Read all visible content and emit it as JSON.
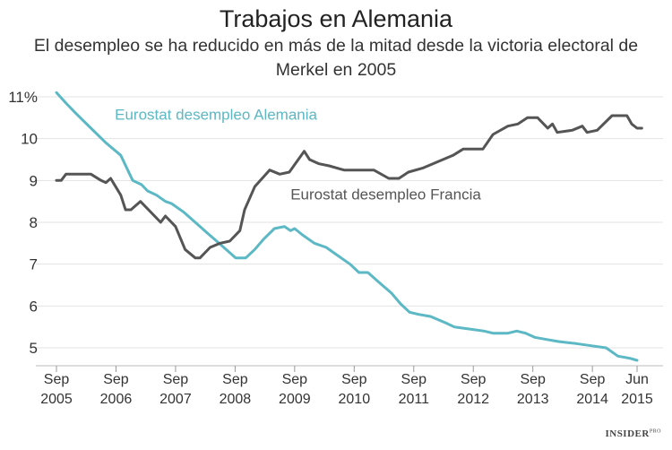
{
  "chart_data": {
    "type": "line",
    "title": "Trabajos en Alemania",
    "subtitle": "El desempleo se ha reducido en más de la mitad desde la victoria electoral de Merkel en 2005",
    "xlabel": "",
    "ylabel": "",
    "ylim": [
      4.6,
      11.2
    ],
    "xlim": [
      2005.67,
      2015.42
    ],
    "y_ticks": [
      {
        "value": 11,
        "label": "11%"
      },
      {
        "value": 10,
        "label": "10"
      },
      {
        "value": 9,
        "label": "9"
      },
      {
        "value": 8,
        "label": "8"
      },
      {
        "value": 7,
        "label": "7"
      },
      {
        "value": 6,
        "label": "6"
      },
      {
        "value": 5,
        "label": "5"
      }
    ],
    "x_ticks": [
      {
        "value": 2005.67,
        "line1": "Sep",
        "line2": "2005"
      },
      {
        "value": 2006.67,
        "line1": "Sep",
        "line2": "2006"
      },
      {
        "value": 2007.67,
        "line1": "Sep",
        "line2": "2007"
      },
      {
        "value": 2008.67,
        "line1": "Sep",
        "line2": "2008"
      },
      {
        "value": 2009.67,
        "line1": "Sep",
        "line2": "2009"
      },
      {
        "value": 2010.67,
        "line1": "Sep",
        "line2": "2010"
      },
      {
        "value": 2011.67,
        "line1": "Sep",
        "line2": "2011"
      },
      {
        "value": 2012.67,
        "line1": "Sep",
        "line2": "2012"
      },
      {
        "value": 2013.67,
        "line1": "Sep",
        "line2": "2013"
      },
      {
        "value": 2014.67,
        "line1": "Sep",
        "line2": "2014"
      },
      {
        "value": 2015.42,
        "line1": "Jun",
        "line2": "2015"
      }
    ],
    "series": [
      {
        "name": "Eurostat desempleo Alemania",
        "color": "#5bb8c4",
        "label_anchor": [
          2006.65,
          10.45
        ],
        "points": [
          [
            2005.67,
            11.1
          ],
          [
            2005.83,
            10.85
          ],
          [
            2006.0,
            10.6
          ],
          [
            2006.25,
            10.25
          ],
          [
            2006.5,
            9.9
          ],
          [
            2006.75,
            9.6
          ],
          [
            2006.95,
            9.0
          ],
          [
            2007.1,
            8.9
          ],
          [
            2007.2,
            8.75
          ],
          [
            2007.35,
            8.65
          ],
          [
            2007.5,
            8.5
          ],
          [
            2007.6,
            8.45
          ],
          [
            2007.8,
            8.25
          ],
          [
            2008.0,
            8.0
          ],
          [
            2008.2,
            7.75
          ],
          [
            2008.4,
            7.5
          ],
          [
            2008.6,
            7.25
          ],
          [
            2008.68,
            7.15
          ],
          [
            2008.85,
            7.15
          ],
          [
            2009.0,
            7.35
          ],
          [
            2009.15,
            7.6
          ],
          [
            2009.33,
            7.85
          ],
          [
            2009.5,
            7.9
          ],
          [
            2009.6,
            7.8
          ],
          [
            2009.67,
            7.85
          ],
          [
            2009.8,
            7.7
          ],
          [
            2010.0,
            7.5
          ],
          [
            2010.2,
            7.4
          ],
          [
            2010.35,
            7.25
          ],
          [
            2010.6,
            7.0
          ],
          [
            2010.75,
            6.8
          ],
          [
            2010.9,
            6.8
          ],
          [
            2011.1,
            6.55
          ],
          [
            2011.3,
            6.3
          ],
          [
            2011.45,
            6.05
          ],
          [
            2011.6,
            5.85
          ],
          [
            2011.75,
            5.8
          ],
          [
            2011.95,
            5.75
          ],
          [
            2012.2,
            5.6
          ],
          [
            2012.35,
            5.5
          ],
          [
            2012.6,
            5.45
          ],
          [
            2012.85,
            5.4
          ],
          [
            2013.0,
            5.35
          ],
          [
            2013.25,
            5.35
          ],
          [
            2013.4,
            5.4
          ],
          [
            2013.55,
            5.35
          ],
          [
            2013.7,
            5.25
          ],
          [
            2013.9,
            5.2
          ],
          [
            2014.1,
            5.15
          ],
          [
            2014.4,
            5.1
          ],
          [
            2014.65,
            5.05
          ],
          [
            2014.9,
            5.0
          ],
          [
            2015.1,
            4.8
          ],
          [
            2015.3,
            4.75
          ],
          [
            2015.42,
            4.7
          ]
        ]
      },
      {
        "name": "Eurostat desempleo Francia",
        "color": "#555555",
        "label_anchor": [
          2009.6,
          8.55
        ],
        "points": [
          [
            2005.67,
            9.0
          ],
          [
            2005.75,
            9.0
          ],
          [
            2005.83,
            9.15
          ],
          [
            2006.0,
            9.15
          ],
          [
            2006.25,
            9.15
          ],
          [
            2006.42,
            9.0
          ],
          [
            2006.5,
            8.95
          ],
          [
            2006.58,
            9.05
          ],
          [
            2006.75,
            8.65
          ],
          [
            2006.83,
            8.3
          ],
          [
            2006.92,
            8.3
          ],
          [
            2007.08,
            8.5
          ],
          [
            2007.25,
            8.25
          ],
          [
            2007.42,
            8.0
          ],
          [
            2007.5,
            8.15
          ],
          [
            2007.67,
            7.9
          ],
          [
            2007.83,
            7.35
          ],
          [
            2008.0,
            7.15
          ],
          [
            2008.08,
            7.15
          ],
          [
            2008.25,
            7.4
          ],
          [
            2008.42,
            7.5
          ],
          [
            2008.58,
            7.55
          ],
          [
            2008.75,
            7.8
          ],
          [
            2008.83,
            8.3
          ],
          [
            2009.0,
            8.85
          ],
          [
            2009.25,
            9.25
          ],
          [
            2009.42,
            9.15
          ],
          [
            2009.58,
            9.2
          ],
          [
            2009.83,
            9.7
          ],
          [
            2009.92,
            9.5
          ],
          [
            2010.08,
            9.4
          ],
          [
            2010.25,
            9.35
          ],
          [
            2010.5,
            9.25
          ],
          [
            2010.75,
            9.25
          ],
          [
            2011.0,
            9.25
          ],
          [
            2011.25,
            9.05
          ],
          [
            2011.42,
            9.05
          ],
          [
            2011.58,
            9.2
          ],
          [
            2011.83,
            9.3
          ],
          [
            2012.08,
            9.45
          ],
          [
            2012.33,
            9.6
          ],
          [
            2012.5,
            9.75
          ],
          [
            2012.83,
            9.75
          ],
          [
            2013.0,
            10.1
          ],
          [
            2013.25,
            10.3
          ],
          [
            2013.42,
            10.35
          ],
          [
            2013.58,
            10.5
          ],
          [
            2013.75,
            10.5
          ],
          [
            2013.92,
            10.25
          ],
          [
            2014.0,
            10.35
          ],
          [
            2014.08,
            10.15
          ],
          [
            2014.33,
            10.2
          ],
          [
            2014.5,
            10.3
          ],
          [
            2014.58,
            10.15
          ],
          [
            2014.75,
            10.2
          ],
          [
            2015.0,
            10.55
          ],
          [
            2015.25,
            10.55
          ],
          [
            2015.33,
            10.35
          ],
          [
            2015.42,
            10.25
          ],
          [
            2015.5,
            10.25
          ]
        ]
      }
    ]
  },
  "branding": {
    "logo_text": "INSIDER",
    "logo_sup": "PRO"
  }
}
